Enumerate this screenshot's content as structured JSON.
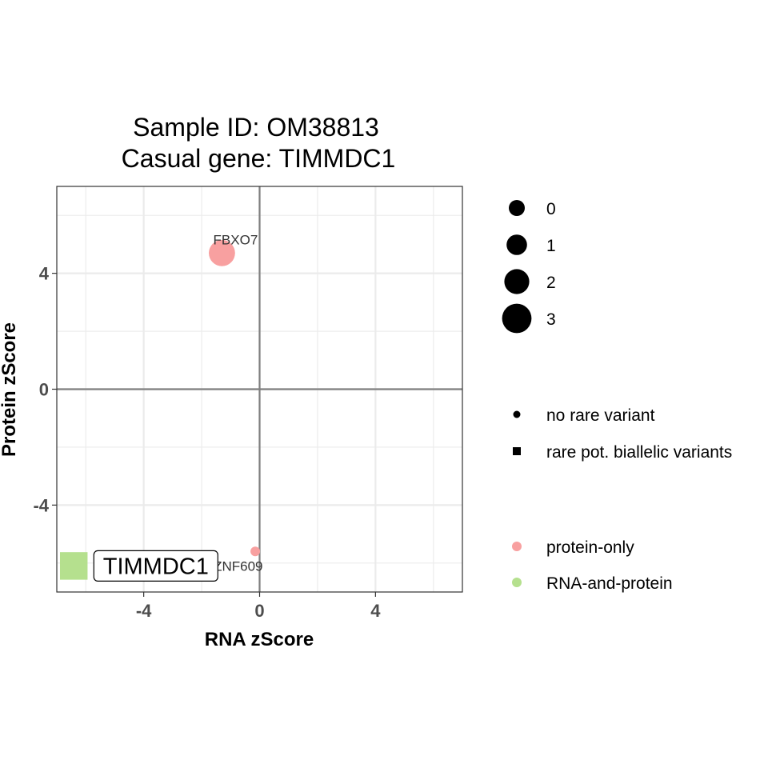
{
  "chart_data": {
    "type": "scatter",
    "title_line1": "Sample ID: OM38813",
    "title_line2": "Casual gene: TIMMDC1",
    "xlabel": "RNA zScore",
    "ylabel": "Protein zScore",
    "xlim": [
      -7,
      7
    ],
    "ylim": [
      -7,
      7
    ],
    "x_ticks": [
      -4,
      0,
      4
    ],
    "y_ticks": [
      -4,
      0,
      4
    ],
    "grid": true,
    "reference_lines": [
      0
    ],
    "points": [
      {
        "gene": "FBXO7",
        "x": -1.3,
        "y": 4.7,
        "size": 3,
        "shape": "circle",
        "category": "protein-only"
      },
      {
        "gene": "ZNF609",
        "x": -0.15,
        "y": -5.6,
        "size": 0,
        "shape": "circle",
        "category": "protein-only"
      },
      {
        "gene": "TIMMDC1",
        "x": -6.55,
        "y": -6.1,
        "size": 3,
        "shape": "square",
        "category": "RNA-and-protein",
        "boxed_label": true
      }
    ],
    "legends": {
      "size": {
        "entries": [
          {
            "label": "0",
            "value": 0
          },
          {
            "label": "1",
            "value": 1
          },
          {
            "label": "2",
            "value": 2
          },
          {
            "label": "3",
            "value": 3
          }
        ]
      },
      "shape": {
        "entries": [
          {
            "label": "no rare variant",
            "shape": "circle"
          },
          {
            "label": "rare pot. biallelic variants",
            "shape": "square"
          }
        ]
      },
      "color": {
        "entries": [
          {
            "label": "protein-only",
            "color": "#F8A0A0"
          },
          {
            "label": "RNA-and-protein",
            "color": "#B5E08E"
          }
        ]
      }
    },
    "legend_position": "right",
    "colors": {
      "protein-only": "#F8A0A0",
      "RNA-and-protein": "#B5E08E"
    }
  }
}
